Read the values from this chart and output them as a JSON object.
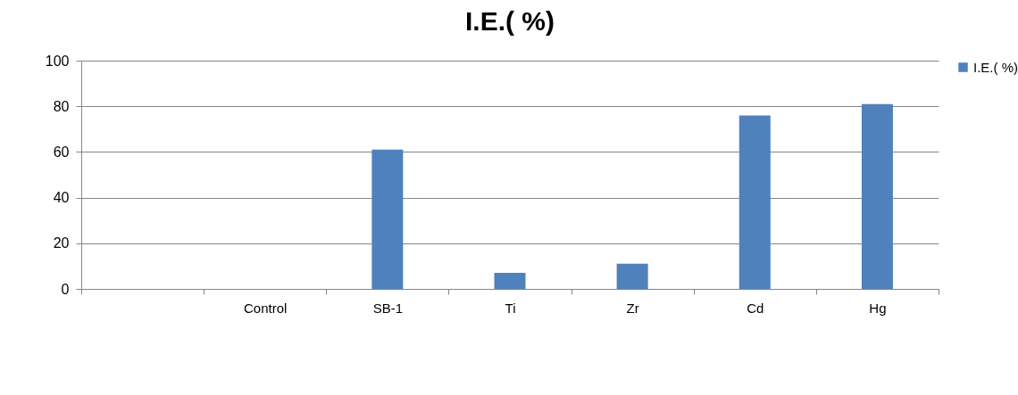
{
  "chart_data": {
    "type": "bar",
    "title": "I.E.( %)",
    "categories": [
      null,
      "Control",
      "SB-1",
      "Ti",
      "Zr",
      "Cd",
      "Hg"
    ],
    "series": [
      {
        "name": "I.E.( %)",
        "color": "#4f81bd",
        "values": [
          null,
          0,
          61,
          7,
          11,
          76,
          81
        ]
      }
    ],
    "ylim": [
      0,
      100
    ],
    "yticks": [
      0,
      20,
      40,
      60,
      80,
      100
    ],
    "grid": "y",
    "legend": "right"
  }
}
